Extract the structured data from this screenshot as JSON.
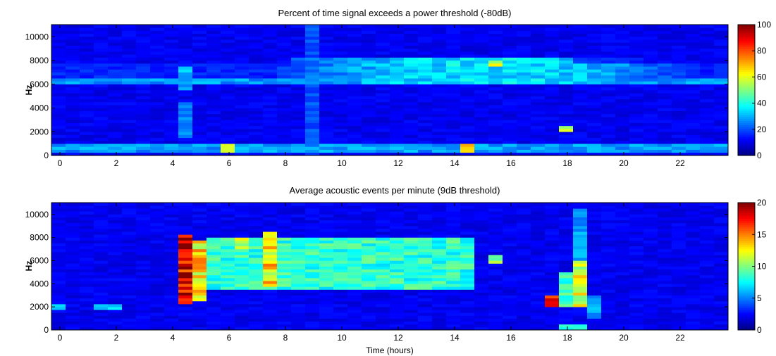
{
  "colormap": "jet",
  "chart_data": [
    {
      "type": "heatmap",
      "title": "Percent of time signal exceeds a power threshold (-80dB)",
      "xlabel": "",
      "ylabel": "Hz",
      "xlim": [
        -0.3,
        23.7
      ],
      "ylim": [
        0,
        11025
      ],
      "x_ticks": [
        "0",
        "2",
        "4",
        "6",
        "8",
        "10",
        "12",
        "14",
        "16",
        "18",
        "20",
        "22"
      ],
      "y_ticks": [
        "0",
        "2000",
        "4000",
        "6000",
        "8000",
        "10000"
      ],
      "colorbar": {
        "range": [
          0,
          100
        ],
        "ticks": [
          "0",
          "20",
          "40",
          "60",
          "80",
          "100"
        ]
      },
      "hour_bins": 48,
      "freq_bins": 44,
      "features": [
        {
          "kind": "band",
          "f": [
            6000,
            8300
          ],
          "v": 38,
          "modulation": "arc-peak-15h"
        },
        {
          "kind": "band",
          "f": [
            300,
            1100
          ],
          "v": 30
        },
        {
          "kind": "band",
          "f": [
            6100,
            6500
          ],
          "v": 30
        },
        {
          "kind": "spot",
          "h": 4.5,
          "f": [
            1500,
            4500
          ],
          "v": 28
        },
        {
          "kind": "spot",
          "h": 4.5,
          "f": [
            5500,
            7500
          ],
          "v": 32
        },
        {
          "kind": "spot",
          "h": 18,
          "f": [
            2000,
            2400
          ],
          "v": 55
        },
        {
          "kind": "spot",
          "h": 14.5,
          "f": [
            300,
            1100
          ],
          "v": 65
        },
        {
          "kind": "spot",
          "h": 6,
          "f": [
            300,
            1100
          ],
          "v": 55
        },
        {
          "kind": "spot",
          "h": 9,
          "f": [
            0,
            11025
          ],
          "v": 22
        },
        {
          "kind": "spot",
          "h": 15.5,
          "f": [
            7500,
            8000
          ],
          "v": 60
        }
      ]
    },
    {
      "type": "heatmap",
      "title": "Average acoustic events per minute (9dB threshold)",
      "xlabel": "Time (hours)",
      "ylabel": "Hz",
      "xlim": [
        -0.3,
        23.7
      ],
      "ylim": [
        0,
        11025
      ],
      "x_ticks": [
        "0",
        "2",
        "4",
        "6",
        "8",
        "10",
        "12",
        "14",
        "16",
        "18",
        "20",
        "22"
      ],
      "y_ticks": [
        "0",
        "2000",
        "4000",
        "6000",
        "8000",
        "10000"
      ],
      "colorbar": {
        "range": [
          0,
          20
        ],
        "ticks": [
          "0",
          "5",
          "10",
          "15",
          "20"
        ]
      },
      "hour_bins": 48,
      "freq_bins": 44,
      "features": [
        {
          "kind": "block",
          "h": [
            4.3,
            4.7
          ],
          "f": [
            2200,
            8200
          ],
          "v": 20
        },
        {
          "kind": "block",
          "h": [
            4.7,
            5.2
          ],
          "f": [
            2500,
            7800
          ],
          "v": 14
        },
        {
          "kind": "band",
          "h": [
            5.2,
            14.7
          ],
          "f": [
            3500,
            8000
          ],
          "v": 9
        },
        {
          "kind": "block",
          "h": [
            7.3,
            7.8
          ],
          "f": [
            3800,
            8500
          ],
          "v": 14
        },
        {
          "kind": "block",
          "h": [
            6,
            6.5
          ],
          "f": [
            7000,
            8000
          ],
          "v": 12
        },
        {
          "kind": "block",
          "h": [
            -0.3,
            0.2
          ],
          "f": [
            1800,
            2300
          ],
          "v": 7
        },
        {
          "kind": "block",
          "h": [
            1.3,
            2.2
          ],
          "f": [
            1800,
            2300
          ],
          "v": 7
        },
        {
          "kind": "block",
          "h": [
            17.3,
            17.8
          ],
          "f": [
            1900,
            3000
          ],
          "v": 17
        },
        {
          "kind": "block",
          "h": [
            18.3,
            18.8
          ],
          "f": [
            2000,
            6000
          ],
          "v": 13
        },
        {
          "kind": "block",
          "h": [
            18.3,
            18.8
          ],
          "f": [
            6000,
            10500
          ],
          "v": 6
        },
        {
          "kind": "block",
          "h": [
            17.8,
            18.3
          ],
          "f": [
            2000,
            5000
          ],
          "v": 9
        },
        {
          "kind": "block",
          "h": [
            17.8,
            18.8
          ],
          "f": [
            0,
            400
          ],
          "v": 10
        },
        {
          "kind": "block",
          "h": [
            18.8,
            19.2
          ],
          "f": [
            1000,
            3000
          ],
          "v": 6
        },
        {
          "kind": "block",
          "h": [
            15.3,
            15.8
          ],
          "f": [
            5800,
            6500
          ],
          "v": 11
        }
      ]
    }
  ]
}
